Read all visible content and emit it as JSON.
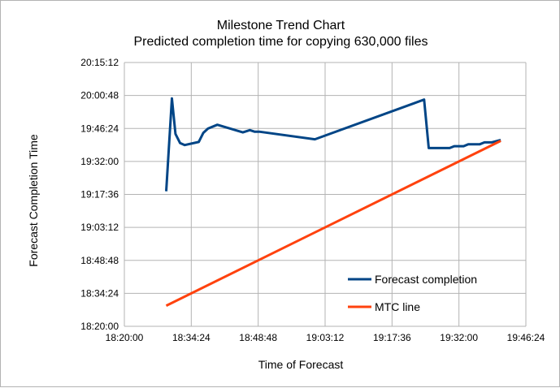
{
  "chart_data": {
    "type": "line",
    "title": "Milestone Trend Chart",
    "subtitle": "Predicted completion time for copying 630,000 files",
    "xlabel": "Time of Forecast",
    "ylabel": "Forecast Completion Time",
    "xlim": [
      "18:20:00",
      "19:46:24"
    ],
    "ylim": [
      "18:20:00",
      "20:15:12"
    ],
    "x_ticks": [
      "18:20:00",
      "18:34:24",
      "18:48:48",
      "19:03:12",
      "19:17:36",
      "19:32:00",
      "19:46:24"
    ],
    "y_ticks": [
      "18:20:00",
      "18:34:24",
      "18:48:48",
      "19:03:12",
      "19:17:36",
      "19:32:00",
      "19:46:24",
      "20:00:48",
      "20:15:12"
    ],
    "grid": true,
    "legend_position": "bottom-right",
    "series": [
      {
        "name": "Forecast completion",
        "color": "#004586",
        "points": [
          [
            "18:29:00",
            "19:19:00"
          ],
          [
            "18:30:14",
            "19:59:30"
          ],
          [
            "18:31:00",
            "19:44:00"
          ],
          [
            "18:32:00",
            "19:40:00"
          ],
          [
            "18:33:00",
            "19:39:10"
          ],
          [
            "18:36:00",
            "19:40:30"
          ],
          [
            "18:37:00",
            "19:44:30"
          ],
          [
            "18:38:00",
            "19:46:20"
          ],
          [
            "18:40:00",
            "19:48:00"
          ],
          [
            "18:45:30",
            "19:44:40"
          ],
          [
            "18:47:00",
            "19:45:40"
          ],
          [
            "18:48:00",
            "19:45:00"
          ],
          [
            "18:49:00",
            "19:45:00"
          ],
          [
            "19:01:00",
            "19:41:40"
          ],
          [
            "19:24:30",
            "19:59:00"
          ],
          [
            "19:25:30",
            "19:37:50"
          ],
          [
            "19:30:00",
            "19:37:50"
          ],
          [
            "19:31:00",
            "19:38:40"
          ],
          [
            "19:33:00",
            "19:38:40"
          ],
          [
            "19:34:00",
            "19:39:30"
          ],
          [
            "19:36:30",
            "19:39:30"
          ],
          [
            "19:37:30",
            "19:40:20"
          ],
          [
            "19:39:00",
            "19:40:20"
          ],
          [
            "19:41:00",
            "19:41:20"
          ]
        ]
      },
      {
        "name": "MTC line",
        "color": "#ff420e",
        "points": [
          [
            "18:29:00",
            "18:29:00"
          ],
          [
            "19:41:00",
            "19:41:00"
          ]
        ]
      }
    ]
  }
}
